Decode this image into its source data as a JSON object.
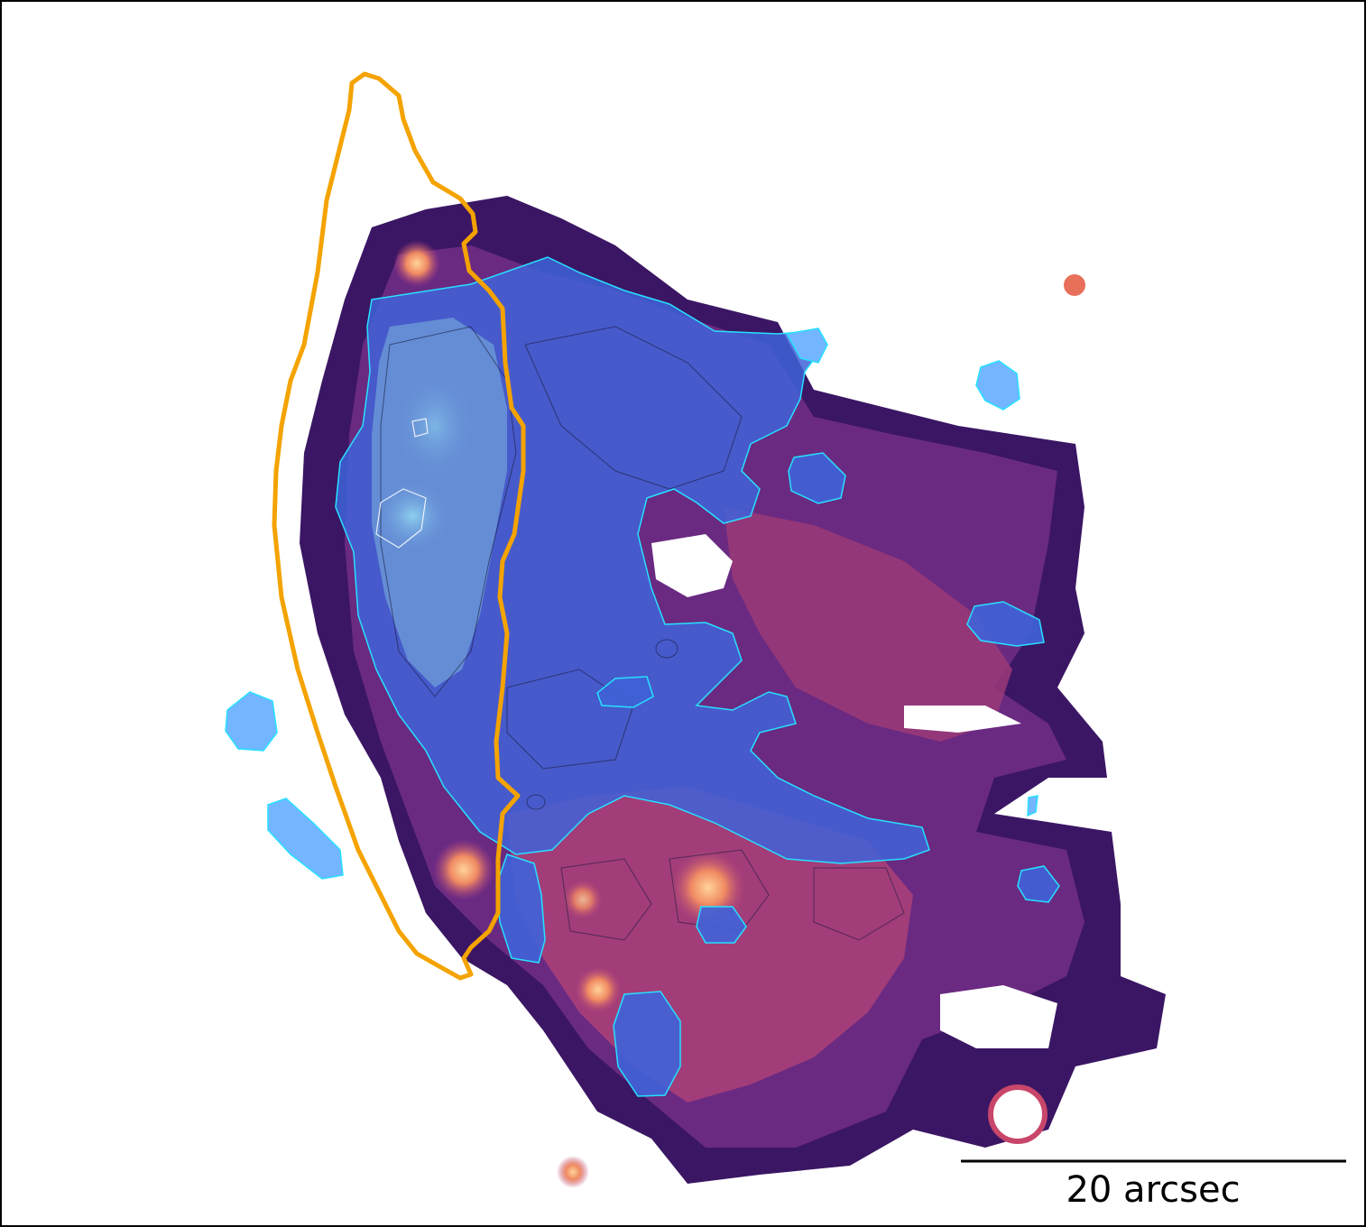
{
  "figure": {
    "scale_bar_label": "20 arcsec"
  },
  "colors": {
    "background": "#ffffff",
    "frame": "#000000",
    "emission_dark": "#2a0f4a",
    "emission_mid": "#5a2a86",
    "emission_warm": "#b7477a",
    "emission_hot": "#f4a070",
    "blue_overlay": "#3f6fe0",
    "blue_overlay_light": "#73b6ff",
    "cyan_contour": "#26e1ff",
    "orange_contour": "#f4a300",
    "scale_bar": "#000000"
  }
}
